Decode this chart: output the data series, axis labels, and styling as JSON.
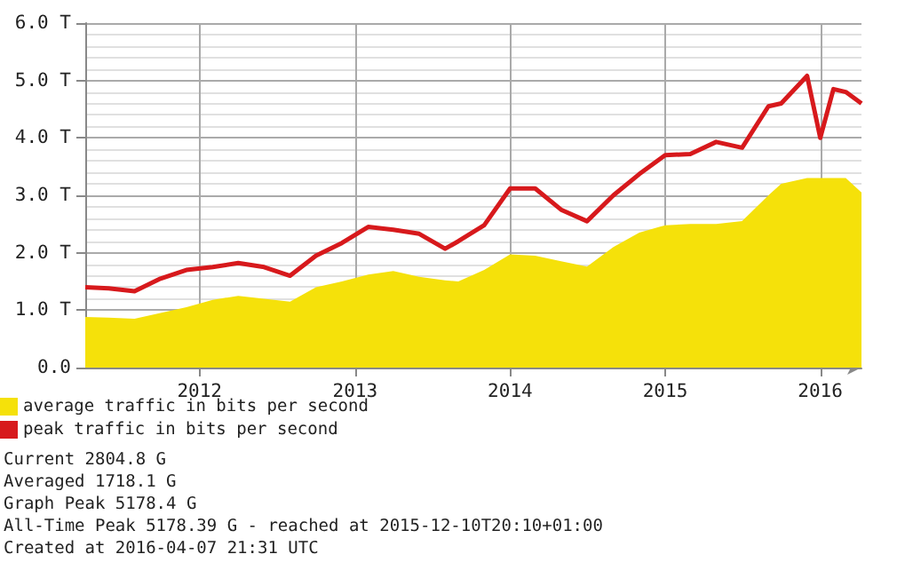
{
  "chart_data": {
    "type": "area",
    "x": [
      "2011-04-07",
      "2011-06",
      "2011-08",
      "2011-10",
      "2011-12",
      "2012-02",
      "2012-04",
      "2012-06",
      "2012-08",
      "2012-10",
      "2012-12",
      "2013-02",
      "2013-04",
      "2013-06",
      "2013-08",
      "2013-09",
      "2013-11",
      "2014-01",
      "2014-03",
      "2014-05",
      "2014-07",
      "2014-09",
      "2014-11",
      "2015-01",
      "2015-03",
      "2015-05",
      "2015-07",
      "2015-09",
      "2015-10",
      "2015-12",
      "2016-01",
      "2016-02",
      "2016-03",
      "2016-04-07"
    ],
    "series": [
      {
        "name": "average traffic in bits per second",
        "color": "#f5e10a",
        "values": [
          0.88,
          0.87,
          0.85,
          0.95,
          1.05,
          1.18,
          1.25,
          1.2,
          1.15,
          1.4,
          1.5,
          1.62,
          1.68,
          1.58,
          1.52,
          1.5,
          1.7,
          1.97,
          1.95,
          1.85,
          1.76,
          2.1,
          2.35,
          2.48,
          2.5,
          2.5,
          2.55,
          3.0,
          3.2,
          3.3,
          3.3,
          3.3,
          3.3,
          3.05
        ]
      },
      {
        "name": "peak traffic in bits per second",
        "type": "line",
        "color": "#d7191c",
        "values": [
          1.4,
          1.38,
          1.33,
          1.55,
          1.7,
          1.75,
          1.82,
          1.75,
          1.6,
          1.95,
          2.17,
          2.45,
          2.4,
          2.33,
          2.07,
          2.2,
          2.48,
          3.12,
          3.12,
          2.75,
          2.55,
          3.0,
          3.37,
          3.7,
          3.72,
          3.93,
          3.83,
          4.55,
          4.6,
          5.08,
          4.0,
          4.85,
          4.8,
          4.6
        ]
      }
    ],
    "xlim": [
      "2011-04-07",
      "2016-04-07"
    ],
    "xticks": [
      "2012",
      "2013",
      "2014",
      "2015",
      "2016"
    ],
    "ylim": [
      0,
      6
    ],
    "yticks": [
      {
        "value": 0,
        "label": "0.0"
      },
      {
        "value": 1,
        "label": "1.0 T"
      },
      {
        "value": 2,
        "label": "2.0 T"
      },
      {
        "value": 3,
        "label": "3.0 T"
      },
      {
        "value": 4,
        "label": "4.0 T"
      },
      {
        "value": 5,
        "label": "5.0 T"
      },
      {
        "value": 6,
        "label": "6.0 T"
      }
    ],
    "grid": true,
    "legend": "bottom left",
    "annotations": [
      "Current 2804.8 G",
      "Averaged 1718.1 G",
      "Graph Peak 5178.4 G",
      "All-Time Peak 5178.39 G - reached at 2015-12-10T20:10+01:00",
      "Created at 2016-04-07 21:31 UTC"
    ]
  }
}
